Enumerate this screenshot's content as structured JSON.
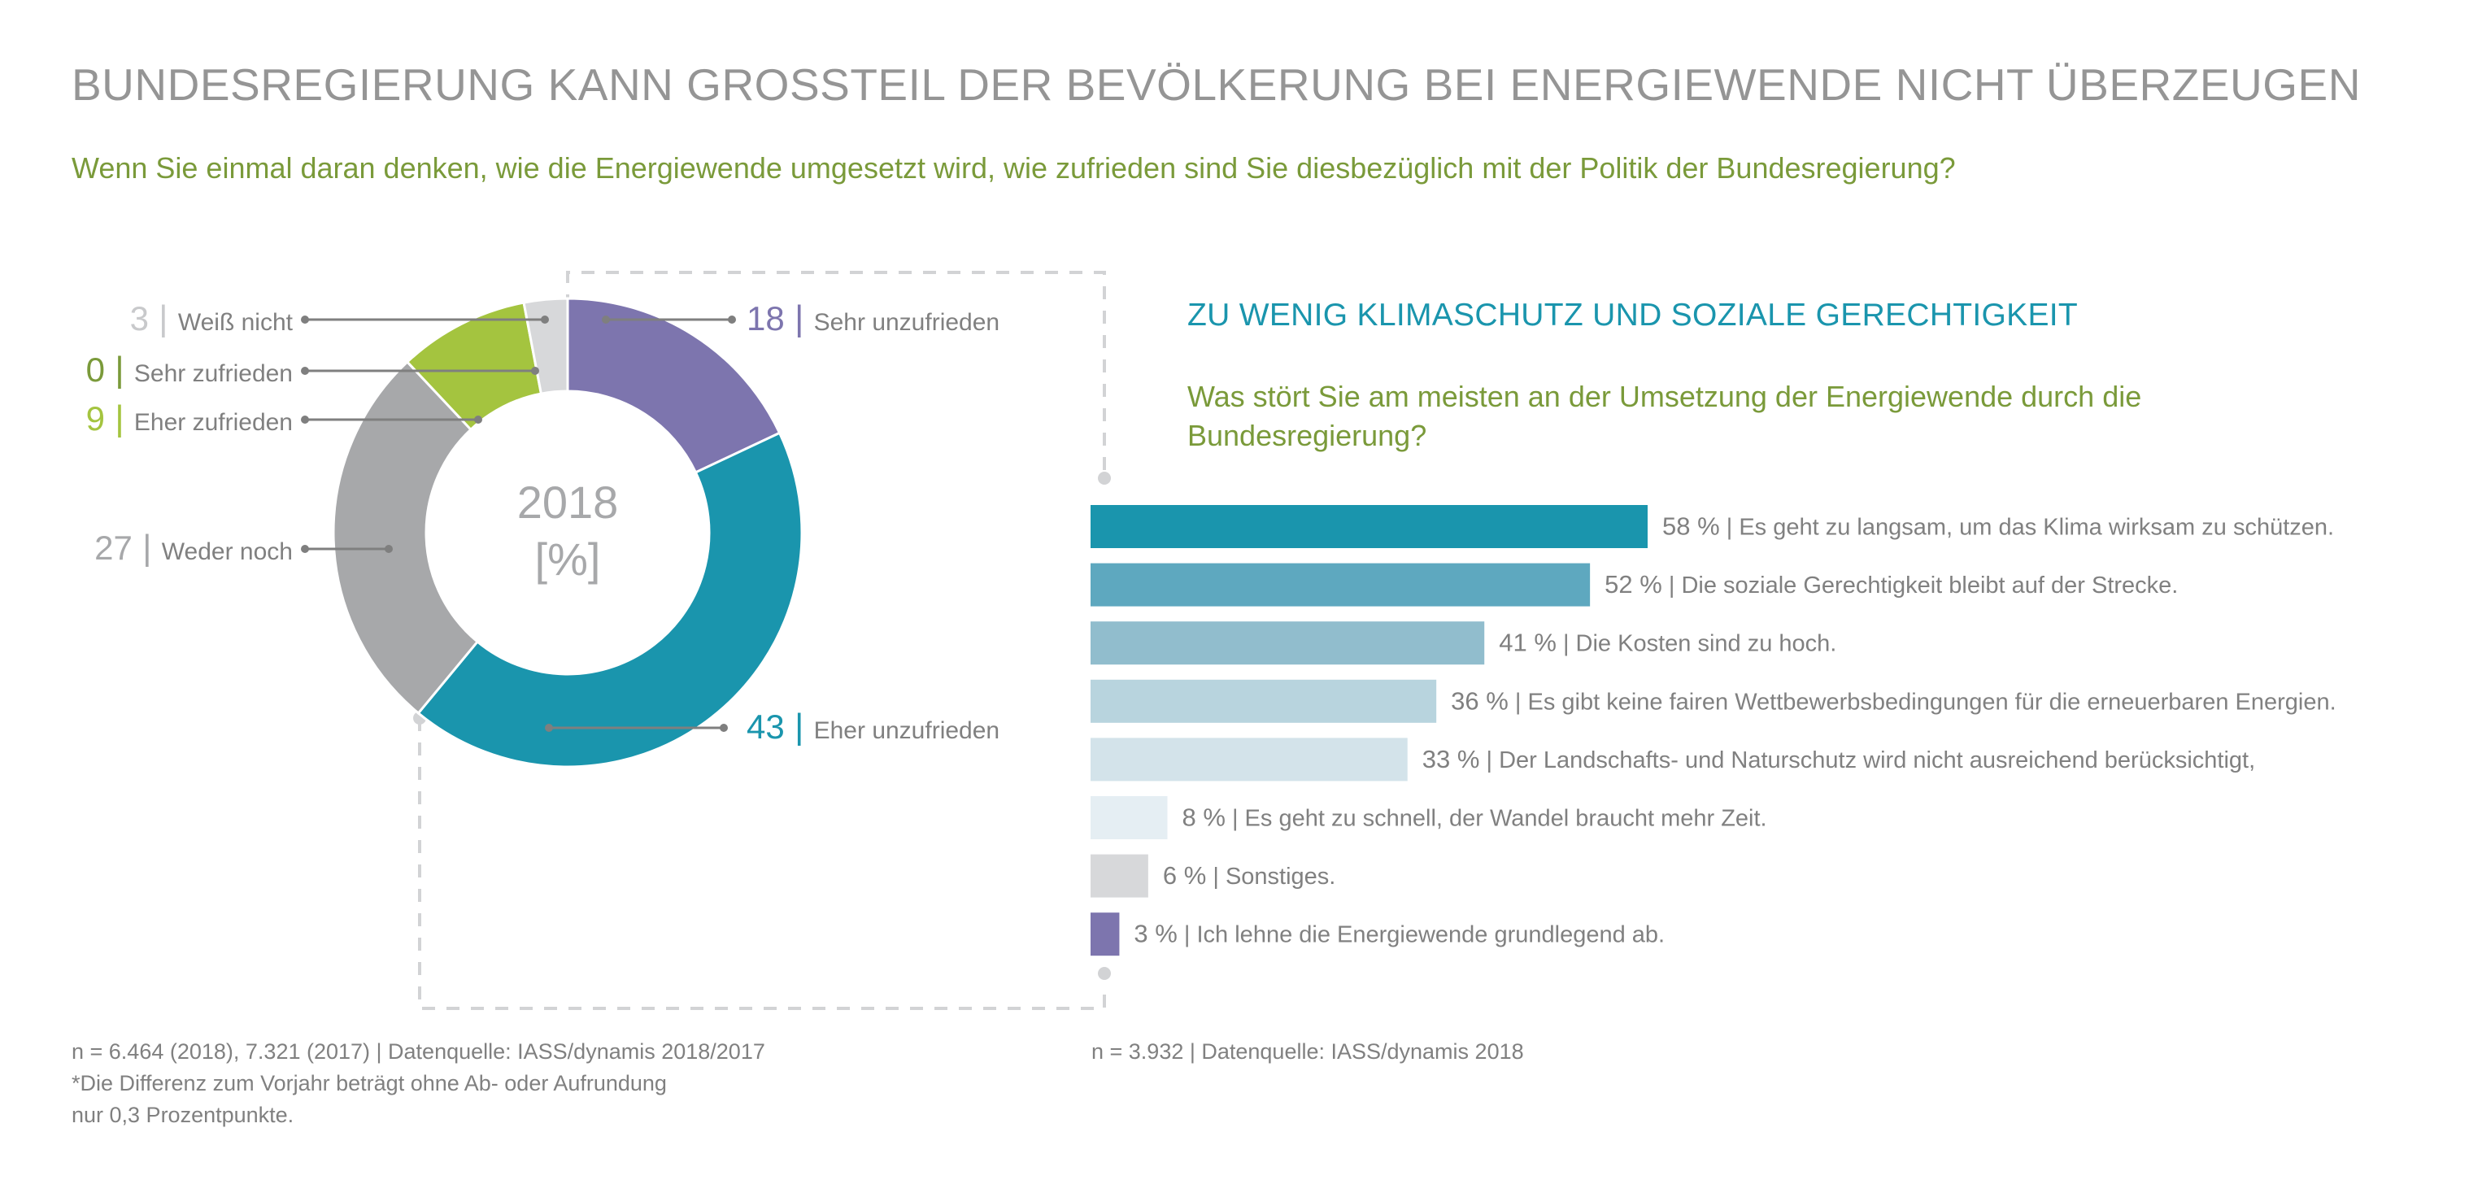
{
  "header": {
    "title": "BUNDESREGIERUNG KANN GROSSTEIL DER BEVÖLKERUNG BEI ENERGIEWENDE NICHT ÜBERZEUGEN",
    "question": "Wenn Sie einmal daran denken, wie die Energiewende umgesetzt wird, wie zufrieden sind Sie diesbezüglich mit der Politik der Bundesregierung?"
  },
  "right_panel": {
    "title": "ZU WENIG KLIMASCHUTZ UND SOZIALE GERECHTIGKEIT",
    "question": "Was stört Sie am meisten an der Umsetzung der Energiewende durch die Bundesregierung?"
  },
  "footnotes": {
    "left": [
      "n = 6.464 (2018), 7.321 (2017) | Datenquelle: IASS/dynamis 2018/2017",
      "*Die Differenz zum Vorjahr beträgt ohne Ab- oder Aufrundung",
      "nur 0,3 Prozentpunkte."
    ],
    "right": "n = 3.932 | Datenquelle: IASS/dynamis 2018"
  },
  "colors": {
    "teal": "#1a95ad",
    "purple": "#7d75ae",
    "green_light": "#a4c43f",
    "green_dark": "#7a9a3a",
    "grey_mid": "#a7a8aa",
    "grey_light": "#d7d8da",
    "text": "#808080",
    "dash": "#d2d3d5"
  },
  "chart_data": [
    {
      "type": "pie",
      "variant": "donut",
      "title": "2018",
      "center_label": [
        "2018",
        "[%]"
      ],
      "unit": "%",
      "start": "top",
      "direction": "clockwise",
      "slices": [
        {
          "label": "Sehr unzufrieden",
          "value": 18,
          "color": "#7d75ae",
          "value_color": "#7d75ae",
          "side": "right"
        },
        {
          "label": "Eher unzufrieden",
          "value": 43,
          "color": "#1a95ad",
          "value_color": "#1a95ad",
          "side": "right"
        },
        {
          "label": "Weder noch",
          "value": 27,
          "color": "#a7a8aa",
          "value_color": "#a7a8aa",
          "side": "left"
        },
        {
          "label": "Eher zufrieden",
          "value": 9,
          "color": "#a4c43f",
          "value_color": "#a4c43f",
          "side": "left"
        },
        {
          "label": "Sehr zufrieden",
          "value": 0,
          "color": "#7a9a3a",
          "value_color": "#7a9a3a",
          "side": "left"
        },
        {
          "label": "Weiß nicht",
          "value": 3,
          "color": "#d7d8da",
          "value_color": "#c8c9cb",
          "side": "left"
        }
      ]
    },
    {
      "type": "bar",
      "orientation": "horizontal",
      "title": "Was stört Sie am meisten an der Umsetzung der Energiewende durch die Bundesregierung?",
      "unit": "%",
      "xlim": [
        0,
        58
      ],
      "categories": [
        "Es geht zu langsam, um das Klima wirksam zu schützen.",
        "Die soziale Gerechtigkeit bleibt auf der Strecke.",
        "Die Kosten sind zu hoch.",
        "Es gibt keine fairen Wettbewerbsbedingungen für die erneuerbaren Energien.",
        "Der Landschafts- und Naturschutz wird nicht ausreichend berücksichtigt,",
        "Es geht zu schnell, der Wandel braucht mehr Zeit.",
        "Sonstiges.",
        "Ich lehne die Energiewende grundlegend ab."
      ],
      "values": [
        58,
        52,
        41,
        36,
        33,
        8,
        6,
        3
      ],
      "value_labels": [
        "58 %",
        "52 %",
        "41 %",
        "36 %",
        "33 %",
        "8 %",
        "6 %",
        "3 %"
      ],
      "colors": [
        "#1a95ad",
        "#5ea8bf",
        "#91bdcd",
        "#b8d4de",
        "#d3e3ea",
        "#e5eef3",
        "#d7d8da",
        "#7d75ae"
      ]
    }
  ]
}
